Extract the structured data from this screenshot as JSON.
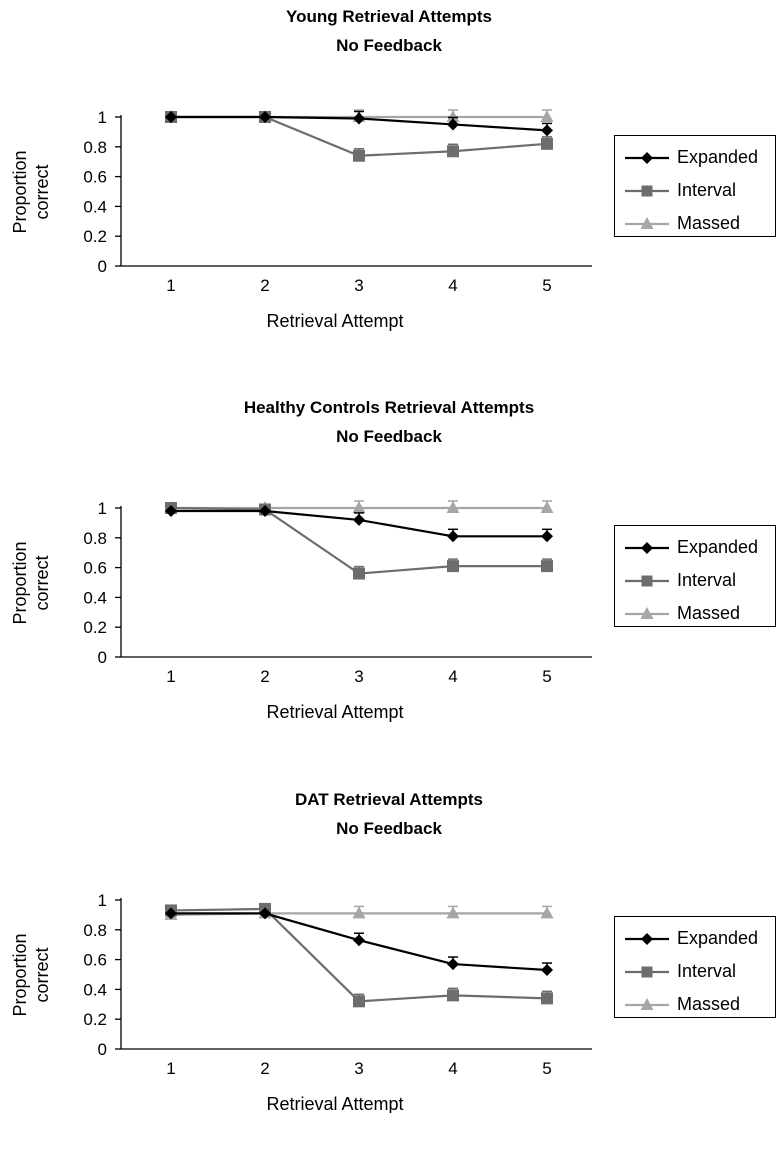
{
  "chart_data": [
    {
      "type": "line",
      "title": "Young Retrieval Attempts",
      "subtitle": "No Feedback",
      "xlabel": "Retrieval Attempt",
      "ylabel_lines": [
        "Proportion",
        "correct"
      ],
      "x": [
        "1",
        "2",
        "3",
        "4",
        "5"
      ],
      "ylim": [
        0,
        1
      ],
      "yticks": [
        "0",
        "0.2",
        "0.4",
        "0.6",
        "0.8",
        "1"
      ],
      "grid": false,
      "legend_position": "right",
      "series": [
        {
          "name": "Expanded",
          "marker": "diamond",
          "color": "#000000",
          "values": [
            1.0,
            1.0,
            0.99,
            0.95,
            0.91
          ]
        },
        {
          "name": "Interval",
          "marker": "square",
          "color": "#6d6d6d",
          "values": [
            1.0,
            1.0,
            0.74,
            0.77,
            0.82
          ]
        },
        {
          "name": "Massed",
          "marker": "triangle",
          "color": "#a6a6a6",
          "values": [
            1.0,
            1.0,
            1.0,
            1.0,
            1.0
          ]
        }
      ]
    },
    {
      "type": "line",
      "title": "Healthy Controls Retrieval Attempts",
      "subtitle": "No Feedback",
      "xlabel": "Retrieval Attempt",
      "ylabel_lines": [
        "Proportion",
        "correct"
      ],
      "x": [
        "1",
        "2",
        "3",
        "4",
        "5"
      ],
      "ylim": [
        0,
        1
      ],
      "yticks": [
        "0",
        "0.2",
        "0.4",
        "0.6",
        "0.8",
        "1"
      ],
      "grid": false,
      "legend_position": "right",
      "series": [
        {
          "name": "Expanded",
          "marker": "diamond",
          "color": "#000000",
          "values": [
            0.98,
            0.98,
            0.92,
            0.81,
            0.81
          ]
        },
        {
          "name": "Interval",
          "marker": "square",
          "color": "#6d6d6d",
          "values": [
            1.0,
            0.99,
            0.56,
            0.61,
            0.61
          ]
        },
        {
          "name": "Massed",
          "marker": "triangle",
          "color": "#a6a6a6",
          "values": [
            1.0,
            1.0,
            1.0,
            1.0,
            1.0
          ]
        }
      ]
    },
    {
      "type": "line",
      "title": "DAT Retrieval Attempts",
      "subtitle": "No Feedback",
      "xlabel": "Retrieval Attempt",
      "ylabel_lines": [
        "Proportion",
        "correct"
      ],
      "x": [
        "1",
        "2",
        "3",
        "4",
        "5"
      ],
      "ylim": [
        0,
        1
      ],
      "yticks": [
        "0",
        "0.2",
        "0.4",
        "0.6",
        "0.8",
        "1"
      ],
      "grid": false,
      "legend_position": "right",
      "series": [
        {
          "name": "Expanded",
          "marker": "diamond",
          "color": "#000000",
          "values": [
            0.91,
            0.91,
            0.73,
            0.57,
            0.53
          ]
        },
        {
          "name": "Interval",
          "marker": "square",
          "color": "#6d6d6d",
          "values": [
            0.93,
            0.94,
            0.32,
            0.36,
            0.34
          ]
        },
        {
          "name": "Massed",
          "marker": "triangle",
          "color": "#a6a6a6",
          "values": [
            0.9,
            0.91,
            0.91,
            0.91,
            0.91
          ]
        }
      ]
    }
  ]
}
